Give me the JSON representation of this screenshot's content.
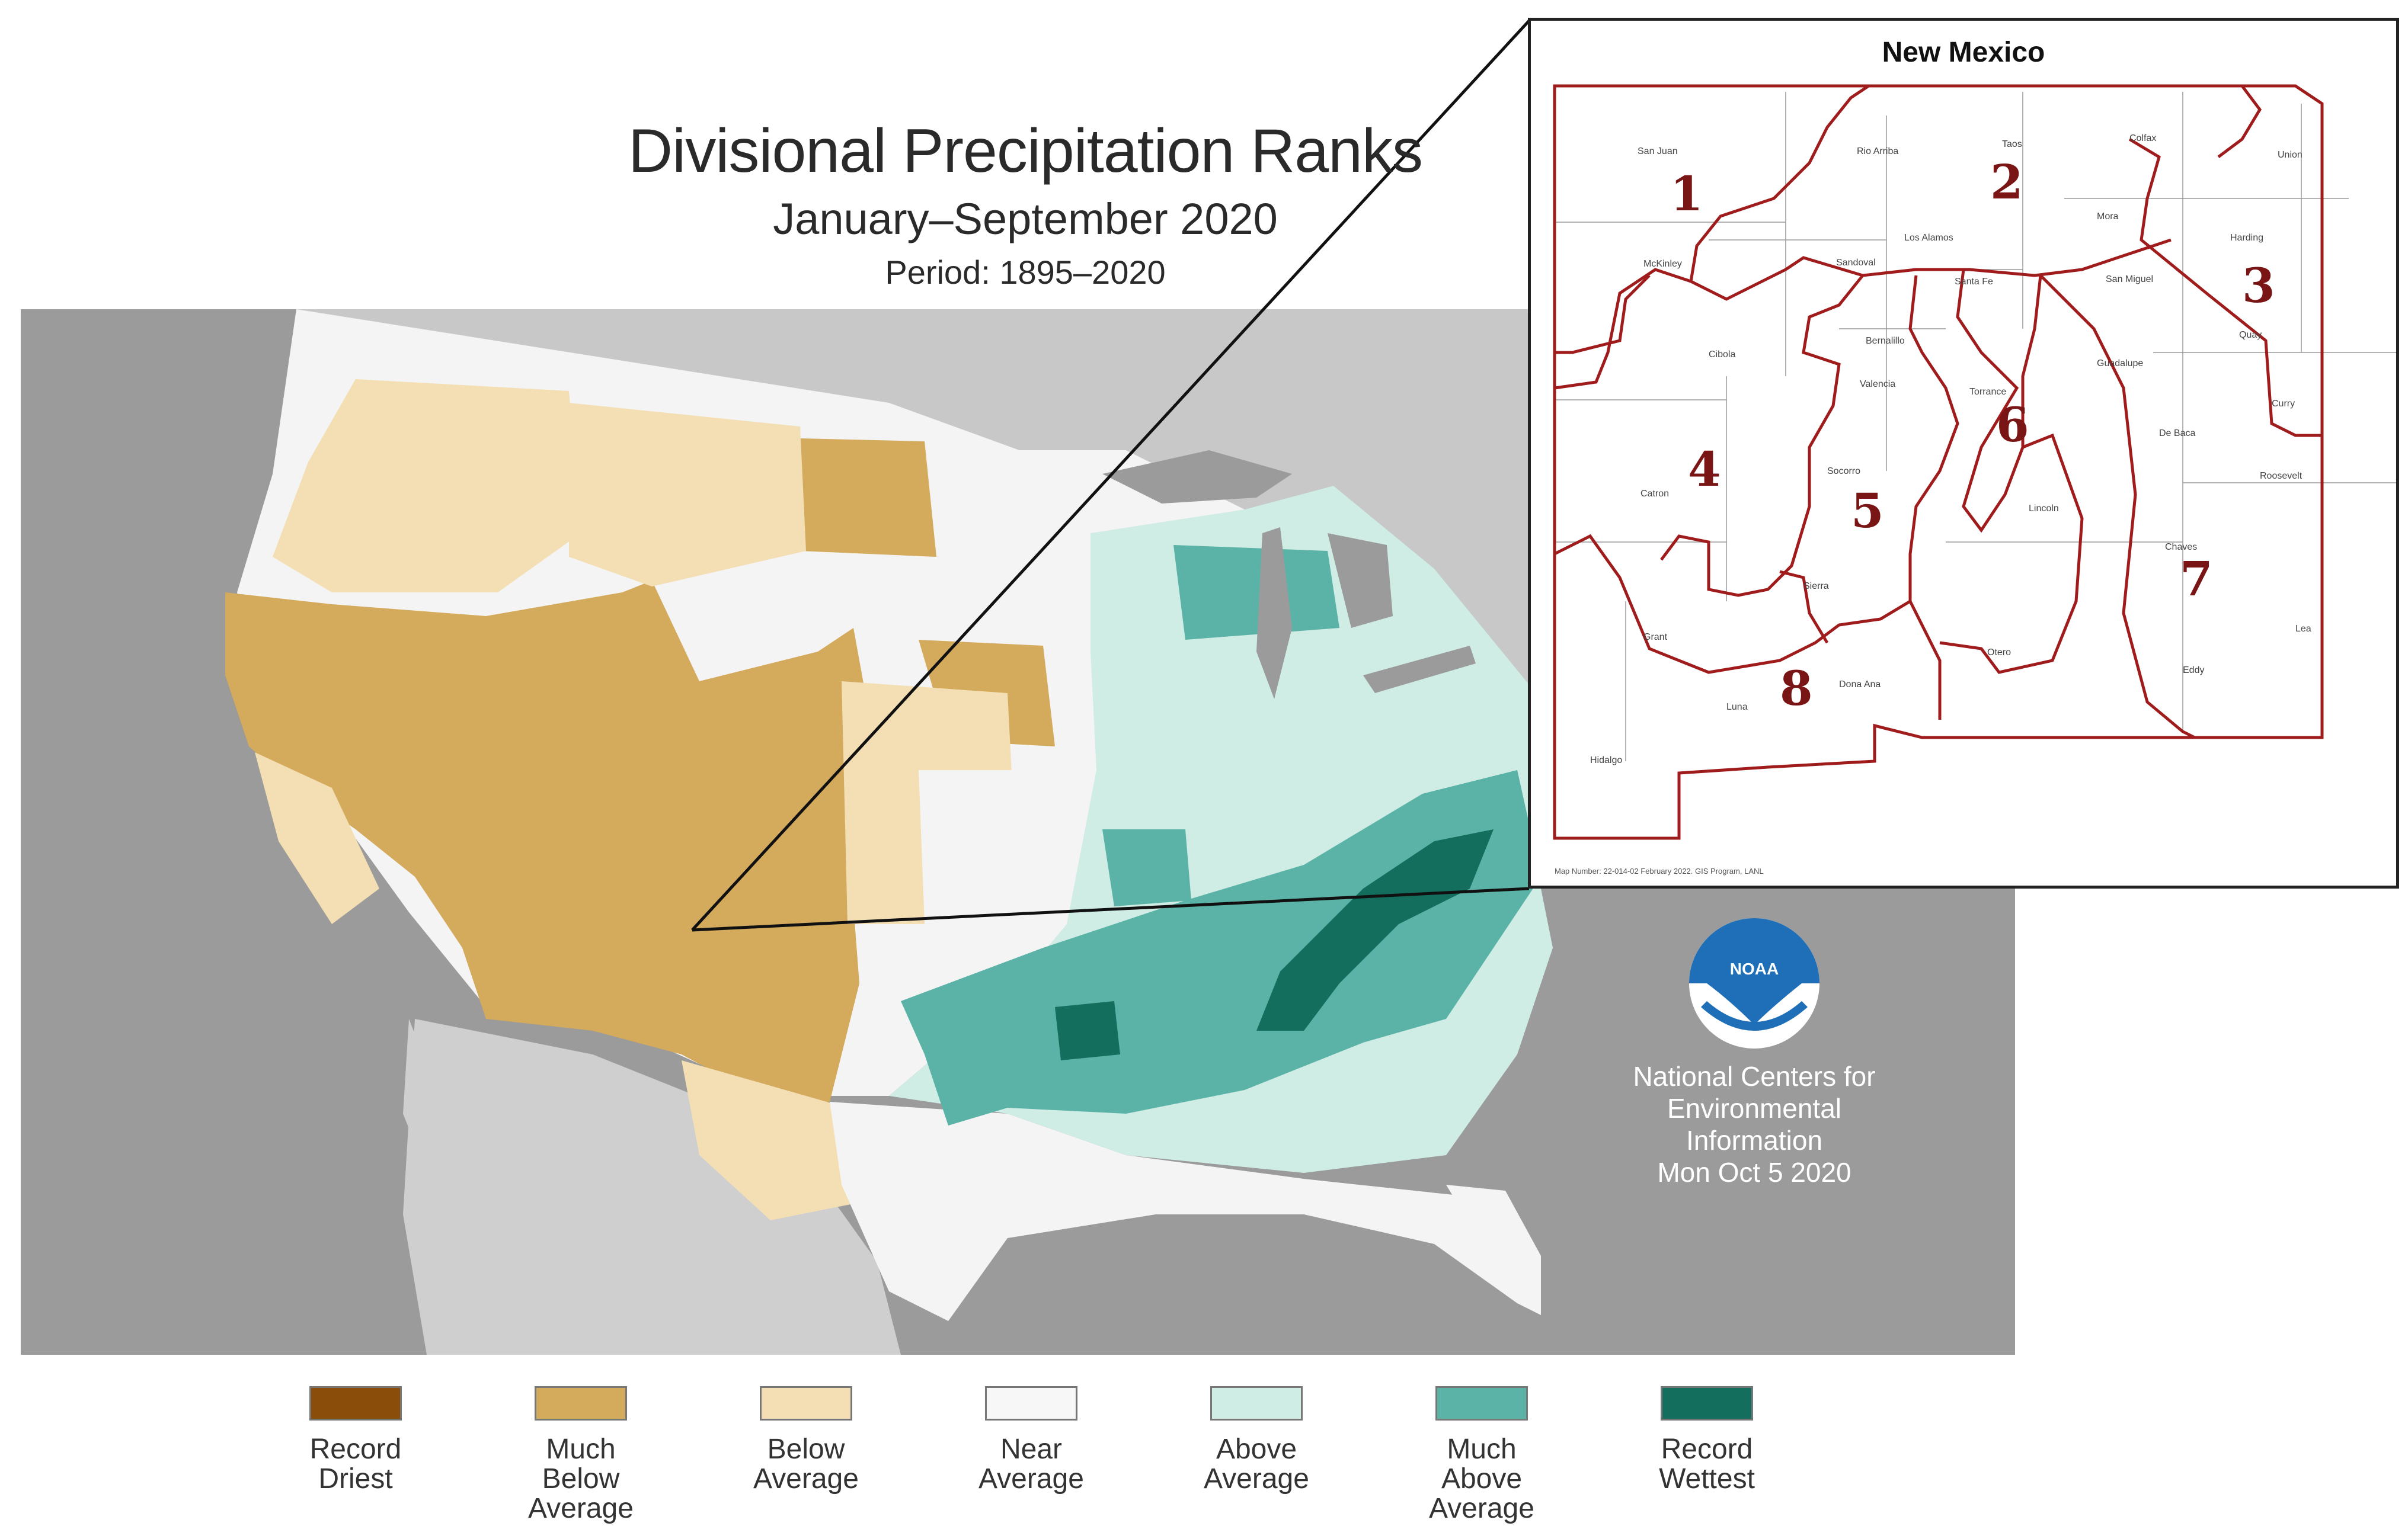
{
  "title": {
    "main": "Divisional Precipitation Ranks",
    "sub": "January–September 2020",
    "period": "Period: 1895–2020"
  },
  "colors": {
    "record_driest": "#8a4d0a",
    "much_below": "#d4aa5c",
    "below": "#f3dfb3",
    "near": "#f7f7f7",
    "above": "#cfece5",
    "much_above": "#5bb3a7",
    "record_wettest": "#136e5e",
    "ocean": "#9b9b9b",
    "nm_border": "#a01c1c"
  },
  "noaa": {
    "logo_text": "NOAA",
    "org_lines": [
      "National Centers for",
      "Environmental",
      "Information",
      "Mon Oct  5 2020"
    ]
  },
  "legend": [
    {
      "label": "Record Driest",
      "color": "#8a4d0a"
    },
    {
      "label": "Much Below Average",
      "color": "#d4aa5c"
    },
    {
      "label": "Below Average",
      "color": "#f3dfb3"
    },
    {
      "label": "Near Average",
      "color": "#f7f7f7"
    },
    {
      "label": "Above Average",
      "color": "#cfece5"
    },
    {
      "label": "Much Above Average",
      "color": "#5bb3a7"
    },
    {
      "label": "Record Wettest",
      "color": "#136e5e"
    }
  ],
  "inset": {
    "title": "New Mexico",
    "divisions": [
      "1",
      "2",
      "3",
      "4",
      "5",
      "6",
      "7",
      "8"
    ],
    "counties": [
      "San Juan",
      "Rio Arriba",
      "Taos",
      "Colfax",
      "Union",
      "McKinley",
      "Sandoval",
      "Los Alamos",
      "Mora",
      "Harding",
      "Santa Fe",
      "San Miguel",
      "Cibola",
      "Bernalillo",
      "Valencia",
      "Torrance",
      "Guadalupe",
      "Quay",
      "Curry",
      "De Baca",
      "Roosevelt",
      "Catron",
      "Socorro",
      "Lincoln",
      "Chaves",
      "Sierra",
      "Grant",
      "Otero",
      "Lea",
      "Luna",
      "Dona Ana",
      "Eddy",
      "Hidalgo"
    ],
    "footnote": "Map Number: 22-014-02 February 2022. GIS Program, LANL"
  }
}
